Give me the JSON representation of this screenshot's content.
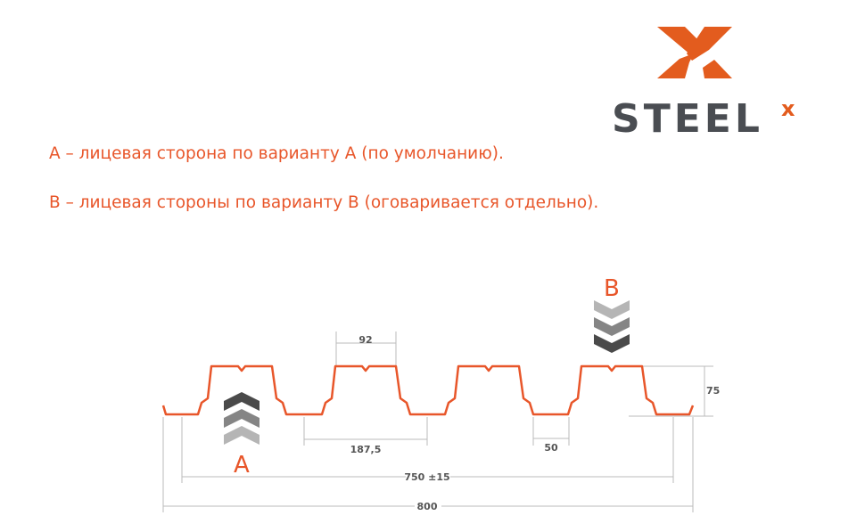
{
  "logo": {
    "text": "STEELX",
    "brand_color": "#e35c1e",
    "text_color": "#4a4d52"
  },
  "notes": [
    "А – лицевая сторона по варианту А (по умолчанию).",
    "В – лицевая стороны по варианту В (оговаривается отдельно)."
  ],
  "diagram": {
    "profile_color": "#e8562a",
    "letter_a": "A",
    "letter_b": "B",
    "dims": {
      "top_width": "92",
      "pitch": "187,5",
      "bottom_width": "50",
      "height": "75",
      "useful_width": "750 ±15",
      "full_width": "800"
    }
  }
}
